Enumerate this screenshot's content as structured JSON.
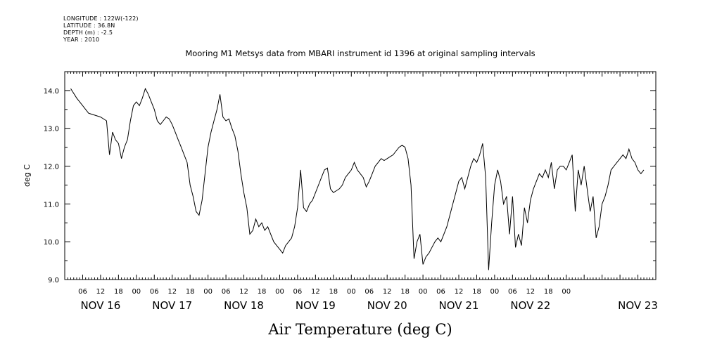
{
  "meta": {
    "longitude": "LONGITUDE : 122W(-122)",
    "latitude": "LATITUDE : 36.8N",
    "depth": "DEPTH (m) : -2.5",
    "year": "YEAR : 2010"
  },
  "chart_data": {
    "type": "line",
    "title": "Mooring M1 Metsys data from MBARI instrument id 1396 at original sampling intervals",
    "xlabel": "Air Temperature (deg C)",
    "ylabel": "deg C",
    "ylim": [
      9.0,
      14.5
    ],
    "yticks": [
      "9.0",
      "10.0",
      "11.0",
      "12.0",
      "13.0",
      "14.0"
    ],
    "xlim_hours_note": "",
    "hour_ticks": [
      "06",
      "12",
      "18",
      "00",
      "06",
      "12",
      "18",
      "00",
      "06",
      "12",
      "18",
      "00",
      "06",
      "12",
      "18",
      "00",
      "06",
      "12",
      "18",
      "00",
      "06",
      "12",
      "18",
      "00",
      "06",
      "12",
      "18",
      "00"
    ],
    "day_labels": [
      "NOV 16",
      "NOV 17",
      "NOV 18",
      "NOV 19",
      "NOV 20",
      "NOV 21",
      "NOV 22",
      "NOV 23"
    ],
    "grid": false,
    "series": [
      {
        "values": [
          [
            2,
            14.05
          ],
          [
            4,
            13.8
          ],
          [
            6,
            13.6
          ],
          [
            8,
            13.4
          ],
          [
            10,
            13.35
          ],
          [
            12,
            13.3
          ],
          [
            14,
            13.2
          ],
          [
            15,
            12.3
          ],
          [
            16,
            12.9
          ],
          [
            17,
            12.7
          ],
          [
            18,
            12.6
          ],
          [
            19,
            12.2
          ],
          [
            20,
            12.5
          ],
          [
            21,
            12.7
          ],
          [
            22,
            13.2
          ],
          [
            23,
            13.6
          ],
          [
            24,
            13.7
          ],
          [
            25,
            13.6
          ],
          [
            26,
            13.8
          ],
          [
            27,
            14.05
          ],
          [
            28,
            13.9
          ],
          [
            29,
            13.7
          ],
          [
            30,
            13.5
          ],
          [
            31,
            13.2
          ],
          [
            32,
            13.1
          ],
          [
            33,
            13.2
          ],
          [
            34,
            13.3
          ],
          [
            35,
            13.25
          ],
          [
            36,
            13.1
          ],
          [
            37,
            12.9
          ],
          [
            38,
            12.7
          ],
          [
            39,
            12.5
          ],
          [
            40,
            12.3
          ],
          [
            41,
            12.1
          ],
          [
            42,
            11.5
          ],
          [
            43,
            11.2
          ],
          [
            44,
            10.8
          ],
          [
            45,
            10.7
          ],
          [
            46,
            11.1
          ],
          [
            47,
            11.8
          ],
          [
            48,
            12.5
          ],
          [
            49,
            12.9
          ],
          [
            50,
            13.2
          ],
          [
            51,
            13.5
          ],
          [
            52,
            13.9
          ],
          [
            53,
            13.3
          ],
          [
            54,
            13.2
          ],
          [
            55,
            13.25
          ],
          [
            56,
            13.0
          ],
          [
            57,
            12.8
          ],
          [
            58,
            12.4
          ],
          [
            59,
            11.8
          ],
          [
            60,
            11.3
          ],
          [
            61,
            10.9
          ],
          [
            62,
            10.2
          ],
          [
            63,
            10.3
          ],
          [
            64,
            10.6
          ],
          [
            65,
            10.4
          ],
          [
            66,
            10.5
          ],
          [
            67,
            10.3
          ],
          [
            68,
            10.4
          ],
          [
            69,
            10.2
          ],
          [
            70,
            10.0
          ],
          [
            71,
            9.9
          ],
          [
            72,
            9.8
          ],
          [
            73,
            9.7
          ],
          [
            74,
            9.9
          ],
          [
            75,
            10.0
          ],
          [
            76,
            10.1
          ],
          [
            77,
            10.4
          ],
          [
            78,
            10.9
          ],
          [
            79,
            11.9
          ],
          [
            80,
            10.9
          ],
          [
            81,
            10.8
          ],
          [
            82,
            11.0
          ],
          [
            83,
            11.1
          ],
          [
            84,
            11.3
          ],
          [
            85,
            11.5
          ],
          [
            86,
            11.7
          ],
          [
            87,
            11.9
          ],
          [
            88,
            11.95
          ],
          [
            89,
            11.4
          ],
          [
            90,
            11.3
          ],
          [
            91,
            11.35
          ],
          [
            92,
            11.4
          ],
          [
            93,
            11.5
          ],
          [
            94,
            11.7
          ],
          [
            95,
            11.8
          ],
          [
            96,
            11.9
          ],
          [
            97,
            12.1
          ],
          [
            98,
            11.9
          ],
          [
            99,
            11.8
          ],
          [
            100,
            11.7
          ],
          [
            101,
            11.45
          ],
          [
            102,
            11.6
          ],
          [
            103,
            11.8
          ],
          [
            104,
            12.0
          ],
          [
            105,
            12.1
          ],
          [
            106,
            12.2
          ],
          [
            107,
            12.15
          ],
          [
            108,
            12.2
          ],
          [
            109,
            12.25
          ],
          [
            110,
            12.3
          ],
          [
            111,
            12.4
          ],
          [
            112,
            12.5
          ],
          [
            113,
            12.55
          ],
          [
            114,
            12.5
          ],
          [
            115,
            12.2
          ],
          [
            116,
            11.5
          ],
          [
            117,
            9.55
          ],
          [
            118,
            10.0
          ],
          [
            119,
            10.2
          ],
          [
            120,
            9.4
          ],
          [
            121,
            9.6
          ],
          [
            122,
            9.7
          ],
          [
            123,
            9.85
          ],
          [
            124,
            10.0
          ],
          [
            125,
            10.1
          ],
          [
            126,
            10.0
          ],
          [
            127,
            10.2
          ],
          [
            128,
            10.4
          ],
          [
            129,
            10.7
          ],
          [
            130,
            11.0
          ],
          [
            131,
            11.3
          ],
          [
            132,
            11.6
          ],
          [
            133,
            11.7
          ],
          [
            134,
            11.4
          ],
          [
            135,
            11.7
          ],
          [
            136,
            12.0
          ],
          [
            137,
            12.2
          ],
          [
            138,
            12.1
          ],
          [
            139,
            12.3
          ],
          [
            140,
            12.6
          ],
          [
            141,
            11.7
          ],
          [
            142,
            9.25
          ],
          [
            143,
            10.5
          ],
          [
            144,
            11.5
          ],
          [
            145,
            11.9
          ],
          [
            146,
            11.6
          ],
          [
            147,
            11.0
          ],
          [
            148,
            11.2
          ],
          [
            149,
            10.2
          ],
          [
            150,
            11.2
          ],
          [
            151,
            9.85
          ],
          [
            152,
            10.2
          ],
          [
            153,
            9.9
          ],
          [
            154,
            10.9
          ],
          [
            155,
            10.5
          ],
          [
            156,
            11.1
          ],
          [
            157,
            11.4
          ],
          [
            158,
            11.6
          ],
          [
            159,
            11.8
          ],
          [
            160,
            11.7
          ],
          [
            161,
            11.9
          ],
          [
            162,
            11.7
          ],
          [
            163,
            12.1
          ],
          [
            164,
            11.4
          ],
          [
            165,
            11.9
          ],
          [
            166,
            12.0
          ],
          [
            167,
            12.0
          ],
          [
            168,
            11.9
          ],
          [
            169,
            12.1
          ],
          [
            170,
            12.3
          ],
          [
            171,
            10.8
          ],
          [
            172,
            11.9
          ],
          [
            173,
            11.5
          ],
          [
            174,
            12.0
          ],
          [
            175,
            11.4
          ],
          [
            176,
            10.8
          ],
          [
            177,
            11.2
          ],
          [
            178,
            10.1
          ],
          [
            179,
            10.4
          ],
          [
            180,
            11.0
          ],
          [
            181,
            11.2
          ],
          [
            182,
            11.5
          ],
          [
            183,
            11.9
          ],
          [
            184,
            12.0
          ],
          [
            185,
            12.1
          ],
          [
            186,
            12.2
          ],
          [
            187,
            12.3
          ],
          [
            188,
            12.2
          ],
          [
            189,
            12.45
          ],
          [
            190,
            12.2
          ],
          [
            191,
            12.1
          ],
          [
            192,
            11.9
          ],
          [
            193,
            11.8
          ],
          [
            194,
            11.9
          ]
        ]
      }
    ]
  }
}
